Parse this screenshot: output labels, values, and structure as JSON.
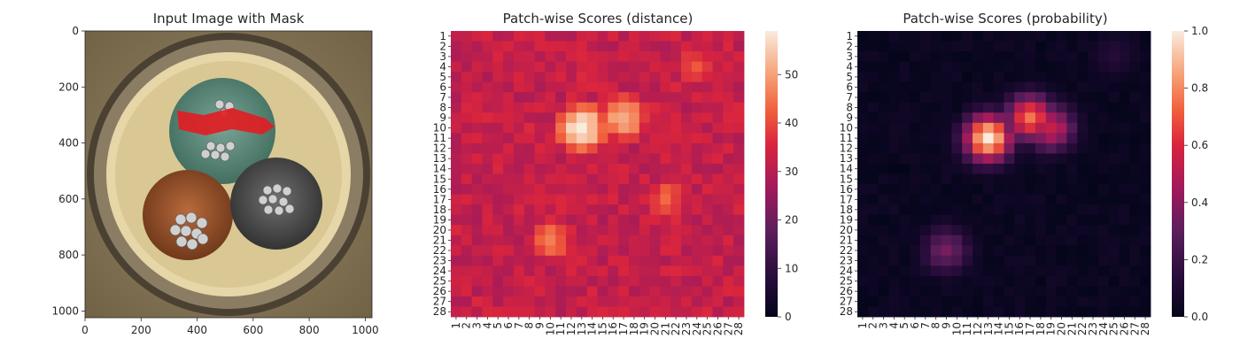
{
  "chart_data": [
    {
      "type": "image",
      "title": "Input Image with Mask",
      "xlim": [
        0,
        1024
      ],
      "ylim": [
        1024,
        0
      ],
      "xticks": [
        0,
        200,
        400,
        600,
        800,
        1000
      ],
      "yticks": [
        0,
        200,
        400,
        600,
        800,
        1000
      ]
    },
    {
      "type": "heatmap",
      "title": "Patch-wise Scores (distance)",
      "rows": 28,
      "cols": 28,
      "xticklabels": [
        "1",
        "2",
        "3",
        "4",
        "5",
        "6",
        "7",
        "8",
        "9",
        "10",
        "11",
        "12",
        "13",
        "14",
        "15",
        "16",
        "17",
        "18",
        "19",
        "20",
        "21",
        "22",
        "23",
        "24",
        "25",
        "26",
        "27",
        "28"
      ],
      "yticklabels": [
        "1",
        "2",
        "3",
        "4",
        "5",
        "6",
        "7",
        "8",
        "9",
        "10",
        "11",
        "12",
        "13",
        "14",
        "15",
        "16",
        "17",
        "18",
        "19",
        "20",
        "21",
        "22",
        "23",
        "24",
        "25",
        "26",
        "27",
        "28"
      ],
      "colorbar": {
        "range": [
          0,
          59
        ],
        "ticks": [
          0,
          10,
          20,
          30,
          40,
          50
        ]
      },
      "colormap": "rocket",
      "hotspots": [
        {
          "row": 10,
          "col": 13,
          "peak": 59
        },
        {
          "row": 9,
          "col": 17,
          "peak": 52
        },
        {
          "row": 21,
          "col": 10,
          "peak": 46
        },
        {
          "row": 17,
          "col": 21,
          "peak": 43
        },
        {
          "row": 4,
          "col": 24,
          "peak": 42
        }
      ]
    },
    {
      "type": "heatmap",
      "title": "Patch-wise Scores (probability)",
      "rows": 28,
      "cols": 28,
      "xticklabels": [
        "1",
        "2",
        "3",
        "4",
        "5",
        "6",
        "7",
        "8",
        "9",
        "10",
        "11",
        "12",
        "13",
        "14",
        "15",
        "16",
        "17",
        "18",
        "19",
        "20",
        "21",
        "22",
        "23",
        "24",
        "25",
        "26",
        "27",
        "28"
      ],
      "yticklabels": [
        "1",
        "2",
        "3",
        "4",
        "5",
        "6",
        "7",
        "8",
        "9",
        "10",
        "11",
        "12",
        "13",
        "14",
        "15",
        "16",
        "17",
        "18",
        "19",
        "20",
        "21",
        "22",
        "23",
        "24",
        "25",
        "26",
        "27",
        "28"
      ],
      "colorbar": {
        "range": [
          0,
          1
        ],
        "ticks": [
          "0.0",
          "0.2",
          "0.4",
          "0.6",
          "0.8",
          "1.0"
        ]
      },
      "colormap": "rocket",
      "hotspots": [
        {
          "row": 11,
          "col": 13,
          "peak": 1.0
        },
        {
          "row": 9,
          "col": 17,
          "peak": 0.75
        },
        {
          "row": 10,
          "col": 19,
          "peak": 0.55
        },
        {
          "row": 22,
          "col": 9,
          "peak": 0.35
        },
        {
          "row": 3,
          "col": 25,
          "peak": 0.12
        }
      ]
    }
  ]
}
